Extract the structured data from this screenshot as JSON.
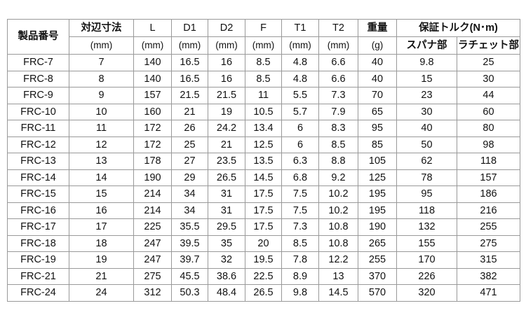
{
  "table": {
    "headers": {
      "product_no": "製品番号",
      "width_across": "対辺寸法",
      "L": "L",
      "D1": "D1",
      "D2": "D2",
      "F": "F",
      "T1": "T1",
      "T2": "T2",
      "weight": "重量",
      "torque": "保証トルク(N･m)",
      "spanner": "スパナ部",
      "ratchet": "ラチェット部",
      "unit_mm": "(mm)",
      "unit_g": "(g)"
    },
    "rows": [
      [
        "FRC-7",
        "7",
        "140",
        "16.5",
        "16",
        "8.5",
        "4.8",
        "6.6",
        "40",
        "9.8",
        "25"
      ],
      [
        "FRC-8",
        "8",
        "140",
        "16.5",
        "16",
        "8.5",
        "4.8",
        "6.6",
        "40",
        "15",
        "30"
      ],
      [
        "FRC-9",
        "9",
        "157",
        "21.5",
        "21.5",
        "11",
        "5.5",
        "7.3",
        "70",
        "23",
        "44"
      ],
      [
        "FRC-10",
        "10",
        "160",
        "21",
        "19",
        "10.5",
        "5.7",
        "7.9",
        "65",
        "30",
        "60"
      ],
      [
        "FRC-11",
        "11",
        "172",
        "26",
        "24.2",
        "13.4",
        "6",
        "8.3",
        "95",
        "40",
        "80"
      ],
      [
        "FRC-12",
        "12",
        "172",
        "25",
        "21",
        "12.5",
        "6",
        "8.5",
        "85",
        "50",
        "98"
      ],
      [
        "FRC-13",
        "13",
        "178",
        "27",
        "23.5",
        "13.5",
        "6.3",
        "8.8",
        "105",
        "62",
        "118"
      ],
      [
        "FRC-14",
        "14",
        "190",
        "29",
        "26.5",
        "14.5",
        "6.8",
        "9.2",
        "125",
        "78",
        "157"
      ],
      [
        "FRC-15",
        "15",
        "214",
        "34",
        "31",
        "17.5",
        "7.5",
        "10.2",
        "195",
        "95",
        "186"
      ],
      [
        "FRC-16",
        "16",
        "214",
        "34",
        "31",
        "17.5",
        "7.5",
        "10.2",
        "195",
        "118",
        "216"
      ],
      [
        "FRC-17",
        "17",
        "225",
        "35.5",
        "29.5",
        "17.5",
        "7.3",
        "10.8",
        "190",
        "132",
        "255"
      ],
      [
        "FRC-18",
        "18",
        "247",
        "39.5",
        "35",
        "20",
        "8.5",
        "10.8",
        "265",
        "155",
        "275"
      ],
      [
        "FRC-19",
        "19",
        "247",
        "39.7",
        "32",
        "19.5",
        "7.8",
        "12.2",
        "255",
        "170",
        "315"
      ],
      [
        "FRC-21",
        "21",
        "275",
        "45.5",
        "38.6",
        "22.5",
        "8.9",
        "13",
        "370",
        "226",
        "382"
      ],
      [
        "FRC-24",
        "24",
        "312",
        "50.3",
        "48.4",
        "26.5",
        "9.8",
        "14.5",
        "570",
        "320",
        "471"
      ]
    ]
  }
}
